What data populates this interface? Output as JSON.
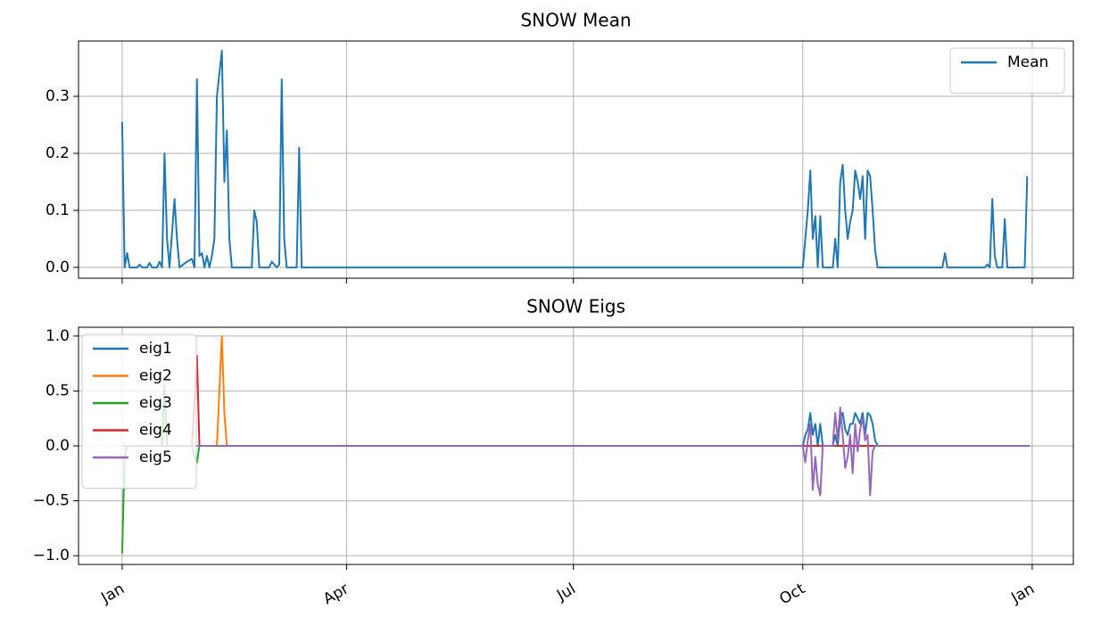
{
  "chart_data": [
    {
      "type": "line",
      "title": "SNOW Mean",
      "x": [
        0,
        1,
        2,
        3,
        6,
        7,
        8,
        10,
        11,
        12,
        14,
        15,
        16,
        17,
        18,
        19,
        21,
        22,
        23,
        26,
        28,
        29,
        30,
        31,
        32,
        33,
        34,
        35,
        36,
        37,
        38,
        40,
        41,
        42,
        43,
        44,
        52,
        53,
        54,
        55,
        59,
        60,
        62,
        63,
        64,
        65,
        66,
        70,
        71,
        72,
        273,
        274,
        275,
        276,
        277,
        278,
        279,
        280,
        281,
        285,
        286,
        287,
        288,
        289,
        290,
        291,
        292,
        293,
        294,
        295,
        296,
        297,
        298,
        299,
        300,
        301,
        302,
        303,
        329,
        330,
        331,
        346,
        347,
        348,
        349,
        350,
        351,
        353,
        354,
        355,
        362,
        363
      ],
      "series": [
        {
          "name": "Mean",
          "color": "#1f77b4",
          "values": [
            0.255,
            0,
            0.025,
            0,
            0,
            0.005,
            0,
            0,
            0.008,
            0,
            0,
            0.01,
            0,
            0.2,
            0.05,
            0,
            0.12,
            0.05,
            0,
            0.01,
            0.015,
            0,
            0.33,
            0.02,
            0.025,
            0,
            0.02,
            0,
            0.02,
            0.05,
            0.3,
            0.38,
            0.15,
            0.24,
            0.05,
            0,
            0,
            0.1,
            0.08,
            0,
            0,
            0.01,
            0,
            0.005,
            0.33,
            0.05,
            0,
            0,
            0.21,
            0,
            0,
            0.05,
            0.1,
            0.17,
            0.05,
            0.09,
            0,
            0.09,
            0,
            0,
            0.05,
            0,
            0.15,
            0.18,
            0.1,
            0.05,
            0.08,
            0.1,
            0.17,
            0.15,
            0.12,
            0.16,
            0.05,
            0.17,
            0.16,
            0.1,
            0.03,
            0,
            0,
            0.025,
            0,
            0,
            0.005,
            0,
            0.12,
            0.02,
            0,
            0,
            0.085,
            0,
            0,
            0.16
          ]
        }
      ],
      "xlim": [
        -17.5,
        381.5
      ],
      "xticks": [
        0,
        90,
        181,
        273,
        365
      ],
      "ylim": [
        -0.019,
        0.397
      ],
      "yticks": [
        {
          "value": 0,
          "label": "0.0"
        },
        0.1,
        0.2,
        0.3
      ],
      "grid": true,
      "legend": "upper right"
    },
    {
      "type": "line",
      "title": "SNOW Eigs",
      "x": [
        0,
        1,
        2,
        16,
        17,
        18,
        28,
        29,
        30,
        31,
        32,
        38,
        39,
        40,
        41,
        42,
        273,
        274,
        275,
        276,
        277,
        278,
        279,
        280,
        281,
        285,
        286,
        287,
        288,
        289,
        290,
        291,
        292,
        293,
        294,
        295,
        296,
        297,
        298,
        299,
        300,
        301,
        302,
        303,
        364
      ],
      "series": [
        {
          "name": "eig1",
          "color": "#1f77b4",
          "values": [
            0,
            0,
            0,
            0,
            0,
            0,
            0,
            0,
            0,
            0,
            0,
            0,
            0,
            0,
            0,
            0,
            0,
            0.1,
            0.15,
            0.3,
            0.1,
            0.2,
            0,
            0.2,
            0,
            0,
            0.1,
            0,
            0.25,
            0.3,
            0.15,
            0.1,
            0.2,
            0.2,
            0.3,
            0.25,
            0.2,
            0.3,
            0.1,
            0.3,
            0.28,
            0.2,
            0.05,
            0,
            0
          ]
        },
        {
          "name": "eig2",
          "color": "#ff7f0e",
          "values": [
            0,
            0,
            0,
            0,
            0,
            0,
            0,
            0,
            0,
            0,
            0,
            0,
            0.5,
            1.0,
            0.3,
            0,
            0,
            0,
            0,
            0,
            0,
            0,
            0,
            0,
            0,
            0,
            0,
            0,
            0,
            0,
            0,
            0,
            0,
            0,
            0,
            0,
            0,
            0,
            0,
            0,
            0,
            0,
            0,
            0,
            0
          ]
        },
        {
          "name": "eig3",
          "color": "#2ca02c",
          "values": [
            -0.98,
            -0.1,
            0,
            0,
            0.55,
            0,
            0,
            -0.1,
            -0.15,
            0,
            0,
            0,
            0,
            0,
            0,
            0,
            0,
            0,
            0,
            0,
            0,
            0,
            0,
            0,
            0,
            0,
            0,
            0,
            0,
            0,
            0,
            0,
            0,
            0,
            0,
            0,
            0,
            0,
            0,
            0,
            0,
            0,
            0,
            0,
            0
          ]
        },
        {
          "name": "eig4",
          "color": "#d62728",
          "values": [
            0,
            0,
            0,
            0,
            0,
            0,
            0,
            0.4,
            0.82,
            0,
            0,
            0,
            0,
            0,
            0,
            0,
            0,
            0,
            0,
            0,
            0,
            0,
            0,
            0,
            0,
            0,
            0,
            0,
            0,
            0,
            0,
            0,
            0,
            0,
            0,
            0,
            0,
            0,
            0,
            0,
            0,
            0,
            0,
            0,
            0
          ]
        },
        {
          "name": "eig5",
          "color": "#9467bd",
          "values": [
            0,
            0,
            0,
            0,
            0,
            0,
            0,
            0,
            0,
            0,
            0,
            0,
            0,
            0,
            0,
            0,
            0,
            -0.15,
            0.05,
            0.2,
            -0.4,
            -0.1,
            -0.35,
            -0.45,
            0,
            0,
            0.3,
            0.05,
            0.35,
            0.1,
            -0.2,
            -0.1,
            0.1,
            -0.25,
            0.2,
            -0.05,
            0.15,
            0.25,
            0.05,
            0.1,
            -0.45,
            -0.05,
            0,
            0,
            0
          ]
        }
      ],
      "xlim": [
        -17.5,
        381.5
      ],
      "xticks": [
        {
          "value": 0,
          "label": "Jan"
        },
        {
          "value": 90,
          "label": "Apr"
        },
        {
          "value": 181,
          "label": "Jul"
        },
        {
          "value": 273,
          "label": "Oct"
        },
        {
          "value": 365,
          "label": "Jan"
        }
      ],
      "ylim": [
        -1.08,
        1.08
      ],
      "yticks": [
        {
          "value": -1,
          "label": "−1.0"
        },
        {
          "value": -0.5,
          "label": "−0.5"
        },
        {
          "value": 0,
          "label": "0.0"
        },
        0.5,
        {
          "value": 1,
          "label": "1.0"
        }
      ],
      "grid": true,
      "legend": "upper left"
    }
  ]
}
